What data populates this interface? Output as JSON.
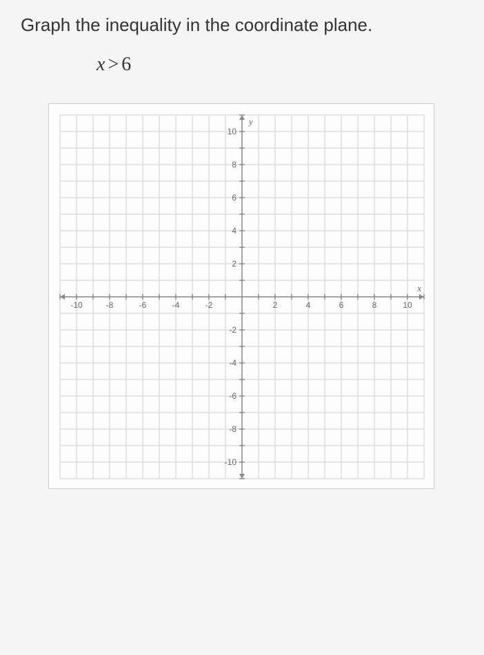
{
  "question": {
    "prompt": "Graph the inequality in the coordinate plane.",
    "expression_var": "x",
    "expression_op": ">",
    "expression_val": "6"
  },
  "graph": {
    "type": "coordinate-plane",
    "background_color": "#fdfdfd",
    "grid_color": "#d0d0d0",
    "axis_color": "#888888",
    "label_color": "#666666",
    "x": {
      "min": -11,
      "max": 11,
      "tick_step": 1,
      "label_step": 2,
      "labels": [
        "-10",
        "-8",
        "-6",
        "-4",
        "-2",
        "2",
        "4",
        "6",
        "8",
        "10"
      ],
      "axis_name": "x"
    },
    "y": {
      "min": -11,
      "max": 11,
      "tick_step": 1,
      "label_step": 2,
      "labels": [
        "-10",
        "-8",
        "-6",
        "-4",
        "-2",
        "2",
        "4",
        "6",
        "8",
        "10"
      ],
      "axis_name": "y"
    },
    "label_fontsize": 12,
    "axis_fontsize": 13
  }
}
